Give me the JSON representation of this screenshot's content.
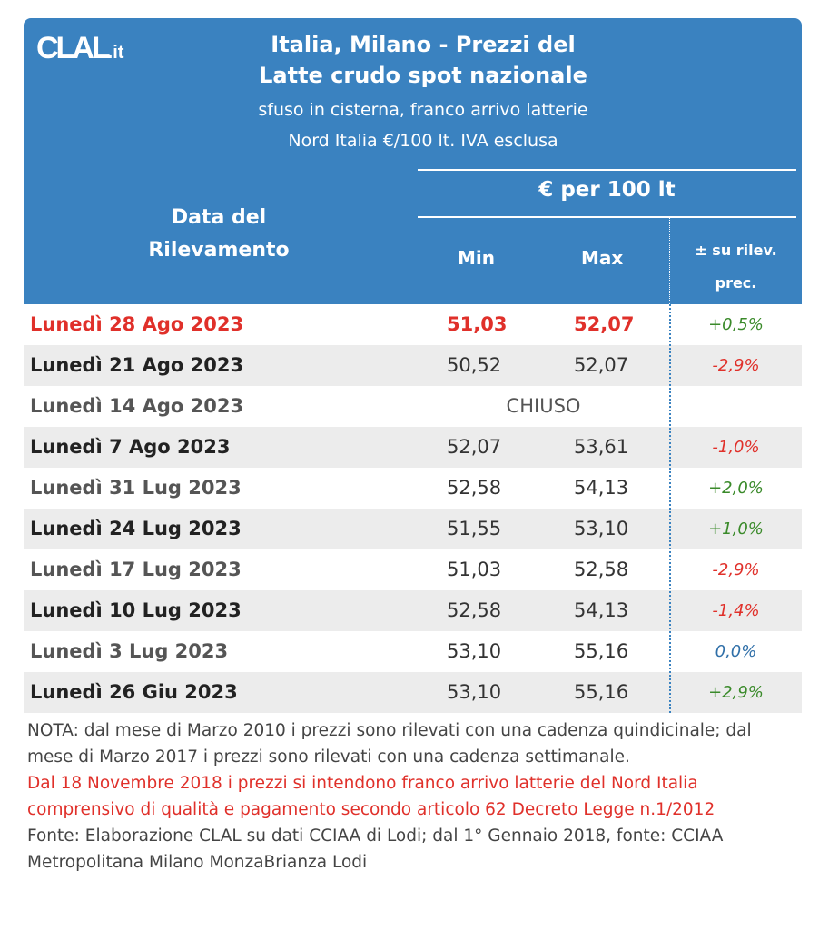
{
  "logo": "CLAL.it",
  "title": [
    "Italia, Milano - Prezzi del",
    "Latte crudo spot nazionale"
  ],
  "subtitle": [
    "sfuso in cisterna, franco arrivo latterie",
    "Nord Italia €/100 lt. IVA esclusa"
  ],
  "header": {
    "unit": "€ per 100 lt",
    "date_col": [
      "Data del",
      "Rilevamento"
    ],
    "min": "Min",
    "max": "Max",
    "var": [
      "± su rilev.",
      "prec."
    ]
  },
  "colors": {
    "header": "#3a82c0",
    "highlight": "#e0302a",
    "positive": "#3a8a2a",
    "negative": "#e0302a",
    "neutral": "#2f6fa8"
  },
  "rows": [
    {
      "date": "Lunedì 28 Ago 2023",
      "min": "51,03",
      "max": "52,07",
      "var": "+0,5%",
      "dir": "positive",
      "highlight": true
    },
    {
      "date": "Lunedì 21 Ago 2023",
      "min": "50,52",
      "max": "52,07",
      "var": "-2,9%",
      "dir": "negative"
    },
    {
      "date": "Lunedì 14 Ago 2023",
      "closed": "CHIUSO"
    },
    {
      "date": "Lunedì 7 Ago 2023",
      "min": "52,07",
      "max": "53,61",
      "var": "-1,0%",
      "dir": "negative"
    },
    {
      "date": "Lunedì 31 Lug 2023",
      "min": "52,58",
      "max": "54,13",
      "var": "+2,0%",
      "dir": "positive"
    },
    {
      "date": "Lunedì 24 Lug 2023",
      "min": "51,55",
      "max": "53,10",
      "var": "+1,0%",
      "dir": "positive"
    },
    {
      "date": "Lunedì 17 Lug 2023",
      "min": "51,03",
      "max": "52,58",
      "var": "-2,9%",
      "dir": "negative"
    },
    {
      "date": "Lunedì 10 Lug 2023",
      "min": "52,58",
      "max": "54,13",
      "var": "-1,4%",
      "dir": "negative"
    },
    {
      "date": "Lunedì 3 Lug 2023",
      "min": "53,10",
      "max": "55,16",
      "var": "0,0%",
      "dir": "neutral"
    },
    {
      "date": "Lunedì 26 Giu 2023",
      "min": "53,10",
      "max": "55,16",
      "var": "+2,9%",
      "dir": "positive"
    }
  ],
  "notes": {
    "nota": "NOTA: dal mese di Marzo 2010 i prezzi sono rilevati con una cadenza quindicinale; dal mese di Marzo 2017 i prezzi sono rilevati con una cadenza settimanale.",
    "red": "Dal 18 Novembre 2018 i prezzi si intendono franco arrivo latterie del Nord Italia comprensivo di qualità e pagamento secondo articolo 62 Decreto Legge n.1/2012",
    "fonte": "Fonte: Elaborazione CLAL su dati CCIAA di Lodi; dal 1° Gennaio 2018, fonte: CCIAA Metropolitana Milano MonzaBrianza Lodi"
  }
}
